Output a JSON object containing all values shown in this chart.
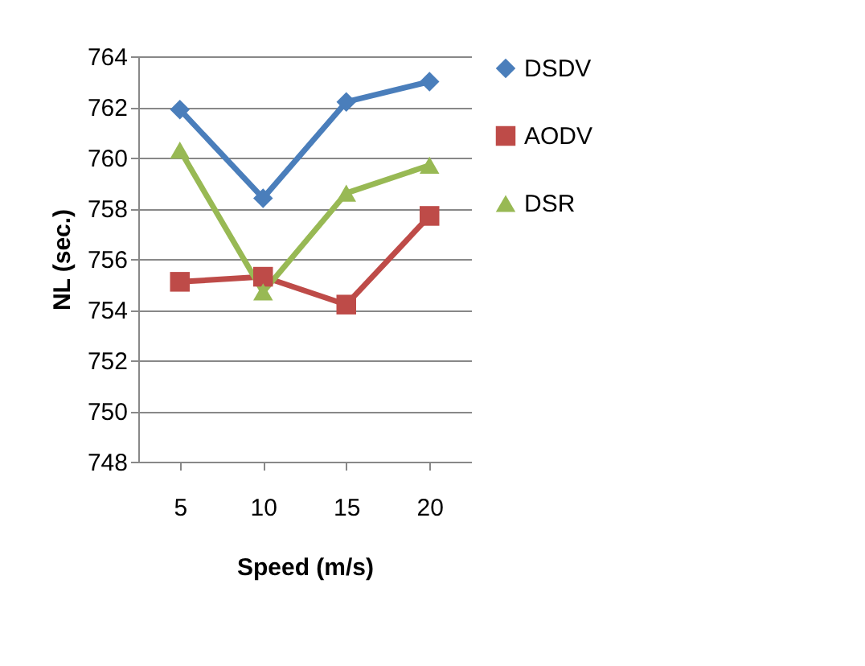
{
  "chart_data": {
    "type": "line",
    "xlabel": "Speed (m/s)",
    "ylabel": "NL (sec.)",
    "categories": [
      "5",
      "10",
      "15",
      "20"
    ],
    "series": [
      {
        "name": "DSDV",
        "color": "#4a7ebb",
        "marker": "diamond",
        "values": [
          761.9,
          758.4,
          762.2,
          763.0
        ]
      },
      {
        "name": "AODV",
        "color": "#be4b48",
        "marker": "square",
        "values": [
          755.1,
          755.3,
          754.2,
          757.7
        ]
      },
      {
        "name": "DSR",
        "color": "#98b954",
        "marker": "triangle",
        "values": [
          760.3,
          754.7,
          758.6,
          759.7
        ]
      }
    ],
    "ylim": [
      748,
      764
    ],
    "yticks": [
      748,
      750,
      752,
      754,
      756,
      758,
      760,
      762,
      764
    ],
    "grid": "y",
    "legend": "right"
  }
}
